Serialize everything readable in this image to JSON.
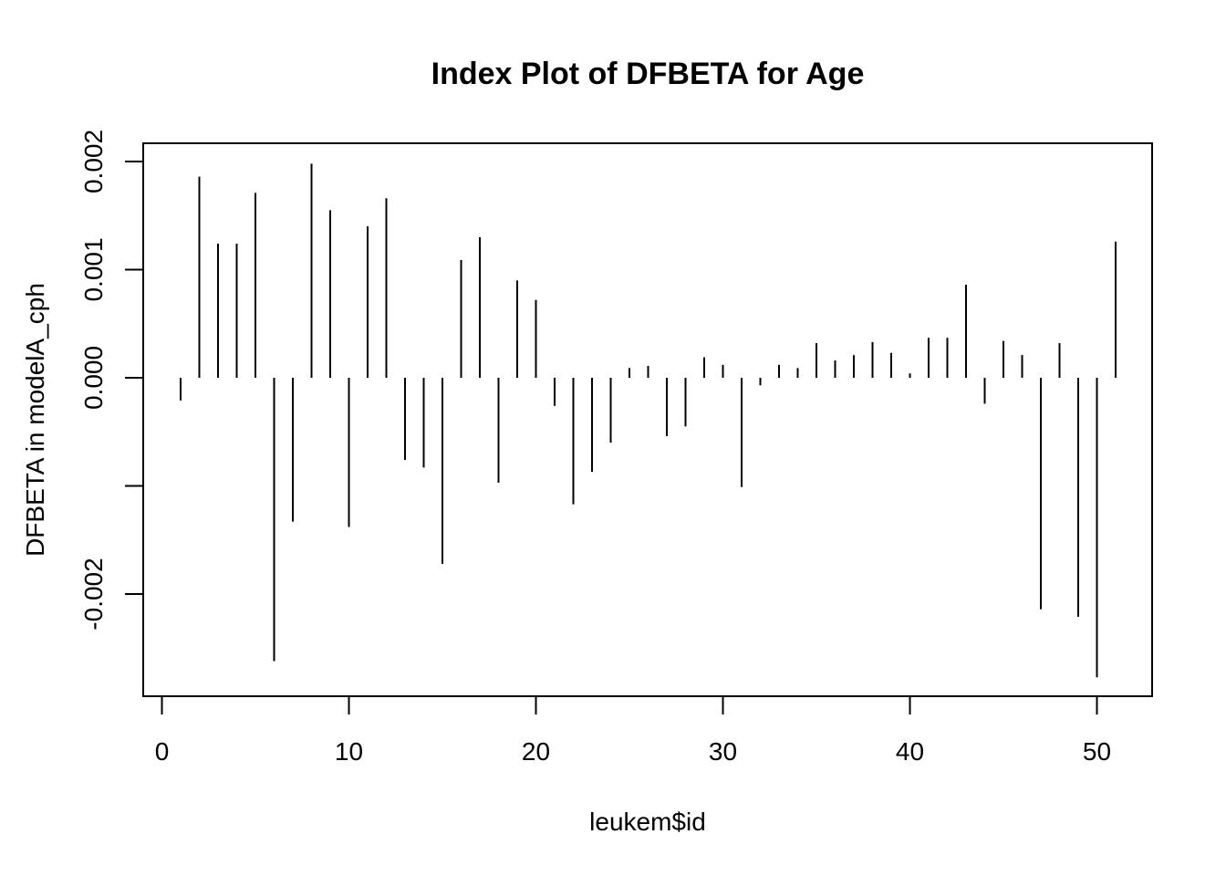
{
  "chart_data": {
    "type": "bar",
    "title": "Index Plot of DFBETA for Age",
    "xlabel": "leukem$id",
    "ylabel": "DFBETA in modelA_cph",
    "xlim": [
      0,
      53
    ],
    "ylim": [
      -0.00278,
      0.00219
    ],
    "xticks": [
      0,
      10,
      20,
      30,
      40,
      50
    ],
    "xtick_labels": [
      "0",
      "10",
      "20",
      "30",
      "40",
      "50"
    ],
    "yticks": [
      -0.002,
      -0.001,
      0.0,
      0.001,
      0.002
    ],
    "ytick_labels": [
      "-0.002",
      "",
      "0.000",
      "0.001",
      "0.002"
    ],
    "grid": false,
    "x": [
      1,
      2,
      3,
      4,
      5,
      6,
      7,
      8,
      9,
      10,
      11,
      12,
      13,
      14,
      15,
      16,
      17,
      18,
      19,
      20,
      21,
      22,
      23,
      24,
      25,
      26,
      27,
      28,
      29,
      30,
      31,
      32,
      33,
      34,
      35,
      36,
      37,
      38,
      39,
      40,
      41,
      42,
      43,
      44,
      45,
      46,
      47,
      48,
      49,
      50,
      51
    ],
    "values": [
      -0.00021,
      0.00186,
      0.00124,
      0.00124,
      0.00171,
      -0.00262,
      -0.00133,
      0.00198,
      0.00155,
      -0.00138,
      0.0014,
      0.00166,
      -0.00076,
      -0.00083,
      -0.00172,
      0.00109,
      0.0013,
      -0.00097,
      0.0009,
      0.00072,
      -0.00026,
      -0.00117,
      -0.00087,
      -0.0006,
      9e-05,
      0.00011,
      -0.00054,
      -0.00045,
      0.00019,
      0.00012,
      -0.00101,
      -7e-05,
      0.00012,
      9e-05,
      0.00032,
      0.00016,
      0.00021,
      0.00033,
      0.00023,
      4e-05,
      0.00037,
      0.00037,
      0.00086,
      -0.00024,
      0.00034,
      0.00021,
      -0.00214,
      0.00032,
      -0.00221,
      -0.00277,
      0.00126
    ]
  }
}
